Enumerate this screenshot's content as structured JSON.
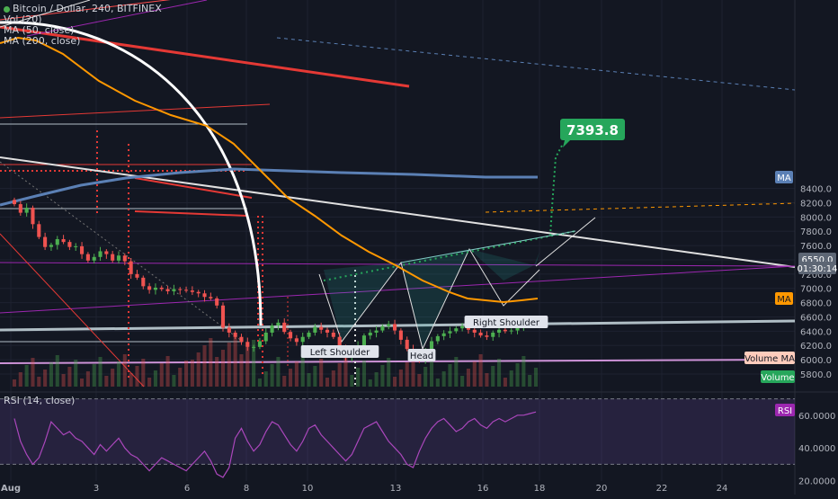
{
  "chart_data": {
    "type": "candlestick",
    "symbol_line": "Bitcoin / Dollar, 240, BITFINEX",
    "indicators": [
      "Vol (20)",
      "MA (50, close)",
      "MA (200, close)"
    ],
    "rsi_title": "RSI (14, close)",
    "price_ticks": [
      "8400.0",
      "8200.0",
      "8000.0",
      "7800.0",
      "7600.0",
      "7400.0",
      "7200.0",
      "7000.0",
      "6800.0",
      "6600.0",
      "6400.0",
      "6200.0",
      "6000.0",
      "5800.0"
    ],
    "price_tick_values": [
      8400,
      8200,
      8000,
      7800,
      7600,
      7400,
      7200,
      7000,
      6800,
      6600,
      6400,
      6200,
      6000,
      5800
    ],
    "ylim": [
      5700,
      8450
    ],
    "rsi_ticks": [
      "60.0000",
      "40.0000",
      "20.0000"
    ],
    "rsi_tick_values": [
      60,
      40,
      20
    ],
    "rsi_ylim": [
      17,
      72
    ],
    "x_ticks": [
      "Aug",
      "3",
      "6",
      "8",
      "10",
      "13",
      "16",
      "18",
      "20",
      "22",
      "24"
    ],
    "price_badge": "6550.0",
    "timer": "01:30:14",
    "ma_badge_1": "MA",
    "ma_badge_2": "MA",
    "volume_ma_badge": "Volume MA",
    "volume_badge": "Volume",
    "rsi_badge": "RSI",
    "target_label": "7393.8",
    "annotations": [
      "Left Shoulder",
      "Head",
      "Right Shoulder"
    ],
    "colors": {
      "background": "#131722",
      "bull": "#4caf50",
      "bear": "#ef5350",
      "ma50": "#ff9800",
      "ma200": "#5b80b5",
      "rsi": "#9c27b0",
      "target": "#26a65b",
      "price_badge": "#5d6674"
    },
    "icons": [
      "legend-dot-icon"
    ]
  }
}
